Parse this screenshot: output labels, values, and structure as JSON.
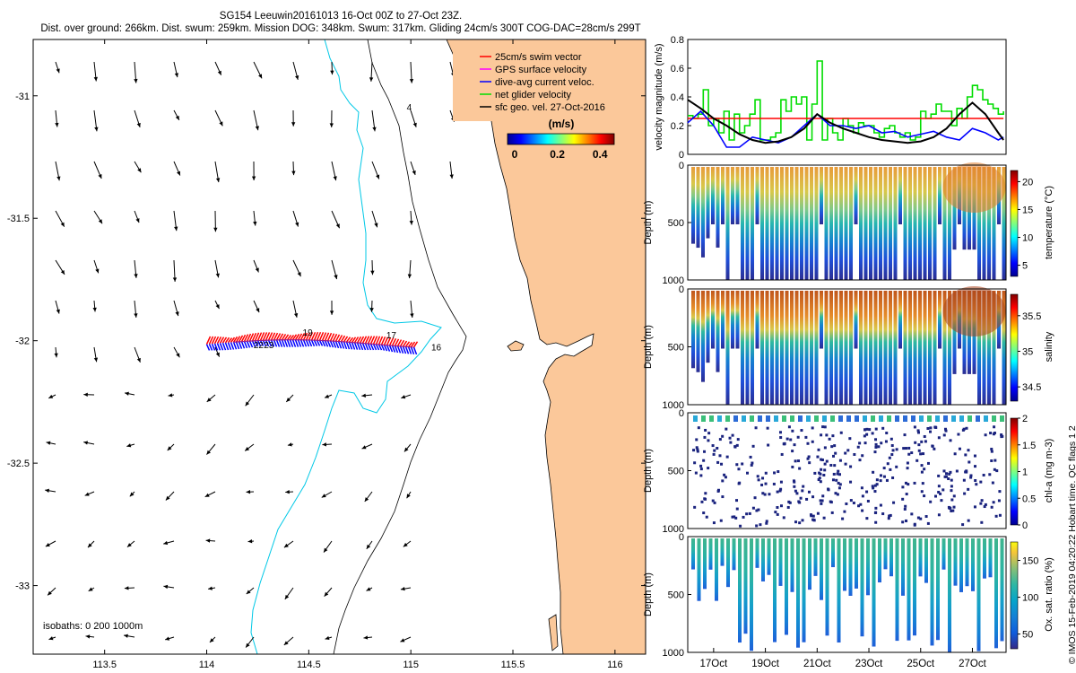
{
  "header": {
    "title_line1": "SG154 Leeuwin20161013 16-Oct 00Z to 27-Oct 23Z.",
    "title_line2": "Dist. over ground: 266km. Dist. swum: 259km. Mission DOG: 348km. Swum: 317km. Gliding 24cm/s 300T COG-DAC=28cm/s 299T"
  },
  "credit": "© IMOS 15-Feb-2019 04:20:22 Hobart time. QC flags 1  2",
  "chart_data": [
    {
      "type": "map",
      "xlim": [
        113.15,
        116.15
      ],
      "ylim": [
        -33.28,
        -30.77
      ],
      "xticks": [
        "113.5",
        "114",
        "114.5",
        "115",
        "115.5",
        "116"
      ],
      "xtick_values": [
        113.5,
        114,
        114.5,
        115,
        115.5,
        116
      ],
      "yticks": [
        "-31",
        "-31.5",
        "-32",
        "-32.5",
        "-33"
      ],
      "ytick_values": [
        -31,
        -31.5,
        -32,
        -32.5,
        -33
      ],
      "legend": {
        "placement": "top-right",
        "entries": [
          {
            "label": "25cm/s swim vector",
            "color": "#ff0000"
          },
          {
            "label": "GPS surface velocity",
            "color": "#ff00ff"
          },
          {
            "label": "dive-avg current veloc.",
            "color": "#0000ff"
          },
          {
            "label": "net glider velocity",
            "color": "#00dd00"
          },
          {
            "label": "sfc geo. vel. 27-Oct-2016",
            "color": "#000000"
          }
        ]
      },
      "colorbar": {
        "title": "(m/s)",
        "ticks": [
          "0",
          "0.2",
          "0.4"
        ],
        "tick_values": [
          0,
          0.2,
          0.4
        ],
        "range": [
          0,
          0.5
        ]
      },
      "isobaths_label": "isobaths: 0   200  1000m",
      "track_labels": [
        {
          "text": "16",
          "lon": 115.1,
          "lat": -32.04
        },
        {
          "text": "17",
          "lon": 114.88,
          "lat": -31.99
        },
        {
          "text": "19",
          "lon": 114.47,
          "lat": -31.98
        },
        {
          "text": "22",
          "lon": 114.23,
          "lat": -32.03
        },
        {
          "text": "23",
          "lon": 114.28,
          "lat": -32.03
        },
        {
          "text": "4",
          "lon": 114.98,
          "lat": -31.06
        }
      ]
    },
    {
      "type": "line",
      "ylabel": "velocity magnitude (m/s)",
      "ylim": [
        0,
        0.8
      ],
      "yticks": [
        "0",
        "0.2",
        "0.4",
        "0.6",
        "0.8"
      ],
      "xlim": [
        16,
        28.3
      ],
      "series": [
        {
          "color": "#00dd00",
          "x": [
            16,
            16.2,
            16.4,
            16.6,
            16.8,
            17,
            17.2,
            17.4,
            17.6,
            17.8,
            18,
            18.2,
            18.4,
            18.6,
            18.8,
            19,
            19.2,
            19.4,
            19.6,
            19.8,
            20,
            20.2,
            20.4,
            20.6,
            20.8,
            21,
            21.2,
            21.4,
            21.6,
            21.8,
            22,
            22.2,
            22.4,
            22.6,
            22.8,
            23,
            23.2,
            23.4,
            23.6,
            23.8,
            24,
            24.2,
            24.4,
            24.6,
            24.8,
            25,
            25.2,
            25.4,
            25.6,
            25.8,
            26,
            26.2,
            26.4,
            26.6,
            26.8,
            27,
            27.2,
            27.4,
            27.6,
            27.8,
            28,
            28.2
          ],
          "values": [
            0.27,
            0.25,
            0.28,
            0.45,
            0.2,
            0.25,
            0.15,
            0.3,
            0.1,
            0.28,
            0.15,
            0.2,
            0.28,
            0.38,
            0.1,
            0.1,
            0.12,
            0.15,
            0.38,
            0.3,
            0.4,
            0.35,
            0.4,
            0.1,
            0.35,
            0.65,
            0.1,
            0.25,
            0.15,
            0.1,
            0.25,
            0.2,
            0.15,
            0.22,
            0.2,
            0.2,
            0.15,
            0.12,
            0.18,
            0.2,
            0.15,
            0.12,
            0.15,
            0.1,
            0.12,
            0.3,
            0.25,
            0.28,
            0.35,
            0.3,
            0.3,
            0.2,
            0.32,
            0.25,
            0.4,
            0.48,
            0.45,
            0.38,
            0.35,
            0.32,
            0.28,
            0.3
          ]
        },
        {
          "color": "#ff0000",
          "x": [
            16,
            28.2
          ],
          "values": [
            0.25,
            0.25
          ]
        },
        {
          "color": "#0000ff",
          "x": [
            16,
            16.5,
            17,
            17.5,
            18,
            18.5,
            19,
            19.5,
            20,
            20.5,
            21,
            21.5,
            22,
            22.5,
            23,
            23.5,
            24,
            24.5,
            25,
            25.5,
            26,
            26.5,
            27,
            27.5,
            28,
            28.2
          ],
          "values": [
            0.22,
            0.3,
            0.2,
            0.05,
            0.05,
            0.12,
            0.1,
            0.08,
            0.12,
            0.2,
            0.28,
            0.2,
            0.2,
            0.18,
            0.2,
            0.15,
            0.16,
            0.12,
            0.14,
            0.16,
            0.12,
            0.1,
            0.18,
            0.15,
            0.1,
            0.12
          ]
        },
        {
          "color": "#000000",
          "x": [
            16,
            16.5,
            17,
            17.5,
            18,
            18.5,
            19,
            19.5,
            20,
            20.5,
            21,
            21.5,
            22,
            22.5,
            23,
            23.5,
            24,
            24.5,
            25,
            25.5,
            26,
            26.5,
            27,
            27.5,
            28,
            28.2
          ],
          "values": [
            0.38,
            0.32,
            0.25,
            0.2,
            0.14,
            0.1,
            0.08,
            0.09,
            0.12,
            0.18,
            0.28,
            0.22,
            0.18,
            0.15,
            0.12,
            0.1,
            0.09,
            0.08,
            0.09,
            0.12,
            0.18,
            0.28,
            0.36,
            0.28,
            0.15,
            0.1
          ]
        }
      ]
    },
    {
      "type": "heatmap",
      "ylabel": "Depth (m)",
      "yticks": [
        "0",
        "500",
        "1000"
      ],
      "ylim": [
        1000,
        0
      ],
      "colorbar": {
        "label": "temperature (°C)",
        "ticks": [
          "5",
          "10",
          "15",
          "20"
        ],
        "tick_values": [
          5,
          10,
          15,
          20
        ],
        "range": [
          3,
          22
        ]
      }
    },
    {
      "type": "heatmap",
      "ylabel": "Depth (m)",
      "yticks": [
        "0",
        "500",
        "1000"
      ],
      "ylim": [
        1000,
        0
      ],
      "colorbar": {
        "label": "salinity",
        "ticks": [
          "34.5",
          "35",
          "35.5"
        ],
        "tick_values": [
          34.5,
          35,
          35.5
        ],
        "range": [
          34.3,
          35.8
        ]
      }
    },
    {
      "type": "heatmap",
      "ylabel": "Depth (m)",
      "yticks": [
        "0",
        "500",
        "1000"
      ],
      "ylim": [
        1000,
        0
      ],
      "colorbar": {
        "label": "chl-a (mg m-3)",
        "ticks": [
          "0",
          "0.5",
          "1",
          "1.5",
          "2"
        ],
        "tick_values": [
          0,
          0.5,
          1,
          1.5,
          2
        ],
        "range": [
          0,
          2
        ]
      }
    },
    {
      "type": "heatmap",
      "ylabel": "Depth (m)",
      "yticks": [
        "0",
        "500",
        "1000"
      ],
      "ylim": [
        1000,
        0
      ],
      "colorbar": {
        "label": "Ox. sat. ratio (%)",
        "ticks": [
          "50",
          "100",
          "150"
        ],
        "tick_values": [
          50,
          100,
          150
        ],
        "range": [
          30,
          175
        ]
      },
      "xticks": [
        "17Oct",
        "19Oct",
        "21Oct",
        "23Oct",
        "25Oct",
        "27Oct"
      ],
      "xtick_values": [
        17,
        19,
        21,
        23,
        25,
        27
      ],
      "xlim": [
        16,
        28.3
      ]
    }
  ]
}
